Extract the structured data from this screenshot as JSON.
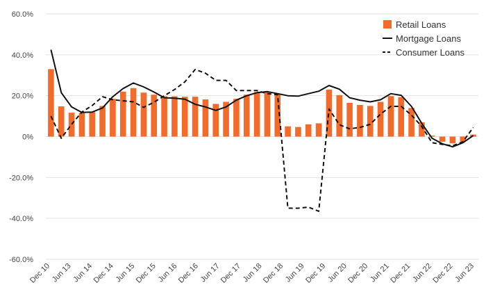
{
  "chart_data": {
    "type": "bar",
    "colors": {
      "bar": "#f26b2b",
      "line": "#111111",
      "grid": "#e3e3e3"
    },
    "ylim": [
      -60,
      60
    ],
    "y_ticks": [
      60,
      40,
      20,
      0,
      -20,
      -40,
      -60
    ],
    "y_tick_labels": [
      "60.0%",
      "40.0%",
      "20.0%",
      "0%",
      "-20.0%",
      "-40.0%",
      "-60.0%"
    ],
    "x_tick_labels": [
      "Dec 10",
      "Jun 13",
      "Jun 14",
      "Dec 14",
      "Jun 15",
      "Dec 15",
      "Jun 16",
      "Dec 16",
      "Jun 17",
      "Dec 17",
      "Jun 18",
      "Dec 18",
      "Jun 19",
      "Dec 19",
      "Jun 20",
      "Dec 20",
      "Jun 21",
      "Dec 21",
      "Jun 22",
      "Dec 22",
      "Jun 23"
    ],
    "legend": {
      "position": "top-right",
      "items": [
        {
          "label": "Retail Loans",
          "kind": "bar"
        },
        {
          "label": "Mortgage Loans",
          "kind": "solid"
        },
        {
          "label": "Consumer Loans",
          "kind": "dashed"
        }
      ]
    },
    "series": [
      {
        "name": "Retail Loans",
        "type": "bar",
        "values": [
          33.0,
          14.8,
          11.7,
          11.5,
          12.0,
          15.0,
          18.5,
          22.0,
          23.7,
          21.5,
          20.5,
          19.7,
          19.7,
          19.5,
          19.5,
          18.2,
          16.0,
          17.0,
          18.5,
          20.5,
          21.8,
          21.8,
          21.0,
          5.0,
          4.7,
          6.0,
          6.5,
          23.0,
          20.3,
          16.5,
          15.5,
          15.0,
          17.0,
          19.8,
          19.3,
          14.0,
          7.0,
          0.5,
          -2.5,
          -3.3,
          -2.5,
          1.0
        ]
      },
      {
        "name": "Mortgage Loans",
        "type": "line",
        "values": [
          42.5,
          21.5,
          14.5,
          11.8,
          12.0,
          14.0,
          19.5,
          23.5,
          26.2,
          24.3,
          21.8,
          19.0,
          18.8,
          18.3,
          15.8,
          14.5,
          12.8,
          14.5,
          17.8,
          20.0,
          21.5,
          22.0,
          21.0,
          20.0,
          19.8,
          21.0,
          22.2,
          25.0,
          23.2,
          19.0,
          17.8,
          17.0,
          18.0,
          21.0,
          20.2,
          14.8,
          6.5,
          -0.8,
          -3.5,
          -5.0,
          -3.0,
          0.5
        ]
      },
      {
        "name": "Consumer Loans",
        "type": "line",
        "values": [
          10.0,
          -0.8,
          6.0,
          12.0,
          15.2,
          19.5,
          18.0,
          17.5,
          17.0,
          14.3,
          16.8,
          20.0,
          23.0,
          26.8,
          32.8,
          31.0,
          27.5,
          27.5,
          22.5,
          22.5,
          22.5,
          21.0,
          20.5,
          -35.0,
          -35.0,
          -34.5,
          -36.5,
          13.5,
          5.8,
          3.8,
          4.5,
          6.0,
          11.0,
          14.8,
          14.8,
          10.5,
          5.0,
          -3.0,
          -3.8,
          -4.5,
          -2.5,
          4.5
        ]
      }
    ]
  }
}
